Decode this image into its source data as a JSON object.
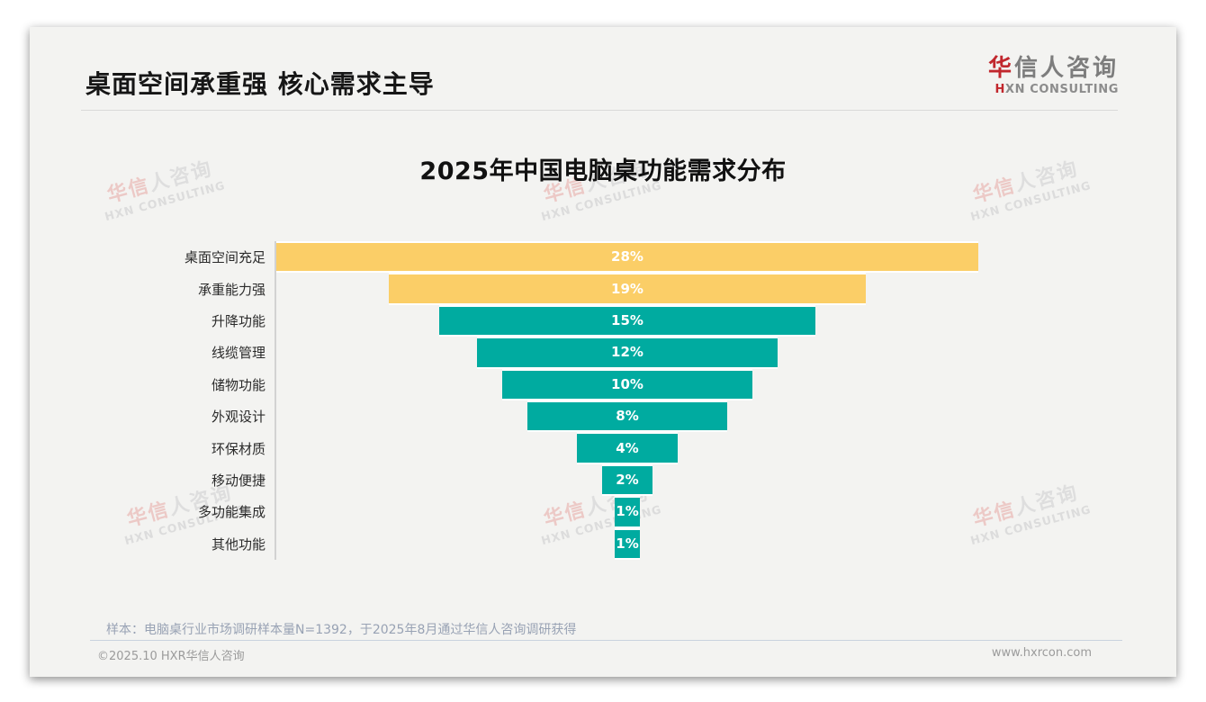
{
  "header": {
    "title": "桌面空间承重强 核心需求主导",
    "logo": {
      "cn_accent": "华",
      "cn_rest": "信人咨询",
      "en_accent": "H",
      "en_rest": "XN CONSULTING"
    }
  },
  "watermark": {
    "cn_accent": "华信",
    "cn_rest": "人咨询",
    "en": "HXN CONSULTING"
  },
  "chart_data": {
    "type": "bar",
    "variant": "centered-funnel-horizontal",
    "title": "2025年中国电脑桌功能需求分布",
    "categories": [
      "桌面空间充足",
      "承重能力强",
      "升降功能",
      "线缆管理",
      "储物功能",
      "外观设计",
      "环保材质",
      "移动便捷",
      "多功能集成",
      "其他功能"
    ],
    "values": [
      28,
      19,
      15,
      12,
      10,
      8,
      4,
      2,
      1,
      1
    ],
    "unit": "%",
    "xlim": [
      0,
      28
    ],
    "highlight_count": 2,
    "colors": {
      "highlight": "#fbce67",
      "normal": "#00aba0",
      "value_label": "#ffffff"
    },
    "legend": "none",
    "grid": "off"
  },
  "footnote": "样本：电脑桌行业市场调研样本量N=1392，于2025年8月通过华信人咨询调研获得",
  "footer": {
    "left": "©2025.10 HXR华信人咨询",
    "right": "www.hxrcon.com"
  }
}
